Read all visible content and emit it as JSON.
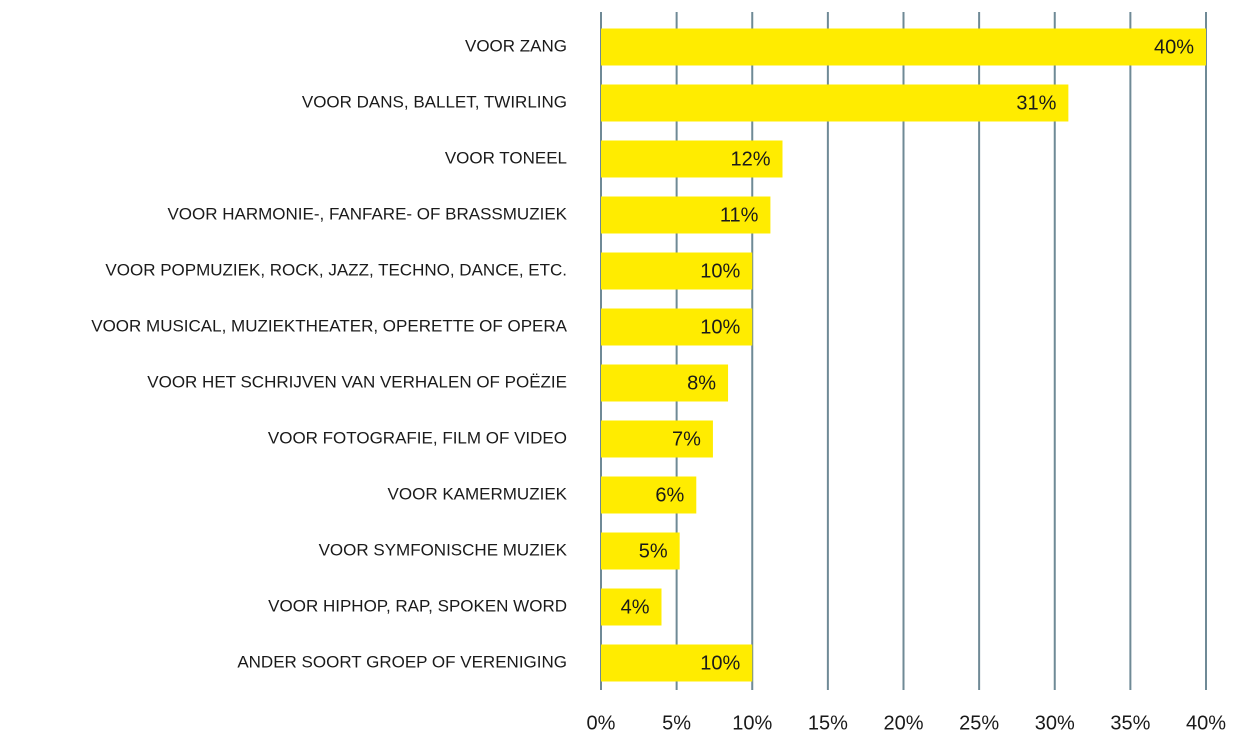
{
  "chart_data": {
    "type": "hbar",
    "categories": [
      "VOOR ZANG",
      "VOOR DANS, BALLET, TWIRLING",
      "VOOR TONEEL",
      "VOOR HARMONIE-, FANFARE- OF BRASSMUZIEK",
      "VOOR POPMUZIEK, ROCK, JAZZ, TECHNO, DANCE, ETC.",
      "VOOR MUSICAL, MUZIEKTHEATER, OPERETTE OF OPERA",
      "VOOR HET SCHRIJVEN VAN VERHALEN OF POËZIE",
      "VOOR FOTOGRAFIE, FILM OF VIDEO",
      "VOOR KAMERMUZIEK",
      "VOOR SYMFONISCHE MUZIEK",
      "VOOR HIPHOP, RAP, SPOKEN WORD",
      "ANDER SOORT GROEP OF VERENIGING"
    ],
    "values": [
      40,
      30.9,
      12,
      11.2,
      10,
      10,
      8.4,
      7.4,
      6.3,
      5.2,
      4,
      10
    ],
    "value_labels": [
      "40%",
      "31%",
      "12%",
      "11%",
      "10%",
      "10%",
      "8%",
      "7%",
      "6%",
      "5%",
      "4%",
      "10%"
    ],
    "color": "#ffec00",
    "xlim": [
      0,
      40
    ],
    "xticks": [
      {
        "value": 0,
        "label": "0%"
      },
      {
        "value": 5,
        "label": "5%"
      },
      {
        "value": 10,
        "label": "10%"
      },
      {
        "value": 15,
        "label": "15%"
      },
      {
        "value": 20,
        "label": "20%"
      },
      {
        "value": 25,
        "label": "25%"
      },
      {
        "value": 30,
        "label": "30%"
      },
      {
        "value": 35,
        "label": "35%"
      },
      {
        "value": 40,
        "label": "40%"
      }
    ],
    "grid": true
  }
}
